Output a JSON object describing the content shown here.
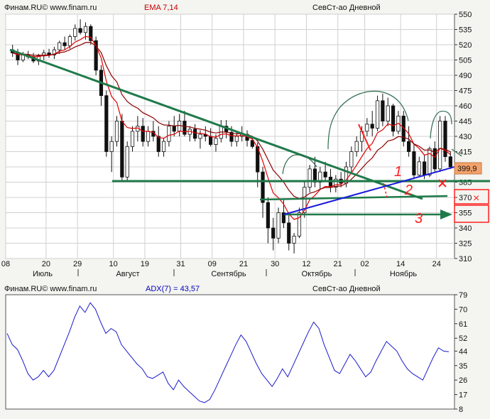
{
  "panel_price": {
    "source_label": "Финам.RU© www.finam.ru",
    "indicator_label": "EMA 7,14",
    "instrument_label": "СевСт-ао Дневной"
  },
  "panel_adx": {
    "source_label": "Финам.RU© www.finam.ru",
    "indicator_label": "ADX(7) = 43,57",
    "instrument_label": "СевСт-ао Дневной"
  },
  "annotations": {
    "last_price_tag": "399,9",
    "mark_1": "1",
    "mark_2": "2",
    "mark_3": "3",
    "mark_x": "×"
  },
  "colors": {
    "candle_up": "#ffffff",
    "candle_down": "#111111",
    "ema_fast": "#e00000",
    "ema_slow": "#8b0000",
    "trend_green": "#1f7a4a",
    "envelope": "#2e6b4d",
    "support_blue": "#1a1adb",
    "adx_line": "#1a1acc",
    "hand_marks": "#ff2020",
    "price_tag_bg": "#f2a26a",
    "grid": "#d0d0d0",
    "plot_bg": "#ffffff"
  },
  "chart_data": [
    {
      "type": "candlestick",
      "title": "СевСт-ао Дневной",
      "ylim": [
        310,
        550
      ],
      "y_ticks": [
        310,
        325,
        340,
        355,
        370,
        385,
        400,
        415,
        430,
        445,
        460,
        475,
        490,
        505,
        520,
        535,
        550
      ],
      "x_day_ticks": [
        "08",
        "20",
        "29",
        "10",
        "19",
        "31",
        "09",
        "21",
        "30",
        "12",
        "21",
        "02",
        "14",
        "24"
      ],
      "x_month_ticks": [
        "Июль",
        "Август",
        "Сентябрь",
        "Октябрь",
        "Ноябрь"
      ],
      "grid": true,
      "series": [
        {
          "name": "OHLC",
          "ohlc": [
            [
              515,
              520,
              508,
              512
            ],
            [
              512,
              516,
              500,
              505
            ],
            [
              505,
              513,
              503,
              510
            ],
            [
              510,
              514,
              506,
              508
            ],
            [
              508,
              512,
              502,
              504
            ],
            [
              504,
              511,
              500,
              509
            ],
            [
              509,
              515,
              505,
              512
            ],
            [
              512,
              516,
              507,
              510
            ],
            [
              510,
              518,
              506,
              515
            ],
            [
              515,
              524,
              511,
              522
            ],
            [
              522,
              528,
              515,
              519
            ],
            [
              519,
              530,
              516,
              528
            ],
            [
              528,
              540,
              524,
              536
            ],
            [
              536,
              545,
              530,
              532
            ],
            [
              532,
              542,
              525,
              538
            ],
            [
              538,
              540,
              520,
              524
            ],
            [
              524,
              528,
              490,
              495
            ],
            [
              495,
              500,
              460,
              470
            ],
            [
              470,
              475,
              410,
              415
            ],
            [
              415,
              430,
              395,
              425
            ],
            [
              425,
              450,
              420,
              445
            ],
            [
              445,
              452,
              385,
              390
            ],
            [
              390,
              425,
              385,
              420
            ],
            [
              420,
              440,
              415,
              435
            ],
            [
              435,
              450,
              425,
              440
            ],
            [
              440,
              448,
              420,
              425
            ],
            [
              425,
              440,
              420,
              435
            ],
            [
              435,
              445,
              425,
              430
            ],
            [
              430,
              440,
              410,
              415
            ],
            [
              415,
              428,
              410,
              425
            ],
            [
              425,
              445,
              420,
              440
            ],
            [
              440,
              450,
              430,
              435
            ],
            [
              435,
              452,
              430,
              445
            ],
            [
              445,
              455,
              430,
              432
            ],
            [
              432,
              440,
              425,
              437
            ],
            [
              437,
              442,
              425,
              428
            ],
            [
              428,
              436,
              418,
              432
            ],
            [
              432,
              440,
              425,
              430
            ],
            [
              430,
              438,
              420,
              422
            ],
            [
              422,
              432,
              415,
              428
            ],
            [
              428,
              446,
              424,
              440
            ],
            [
              440,
              446,
              428,
              434
            ],
            [
              434,
              440,
              420,
              425
            ],
            [
              425,
              435,
              420,
              430
            ],
            [
              430,
              440,
              425,
              432
            ],
            [
              432,
              436,
              420,
              426
            ],
            [
              426,
              430,
              418,
              420
            ],
            [
              420,
              424,
              380,
              395
            ],
            [
              395,
              400,
              350,
              365
            ],
            [
              365,
              370,
              325,
              340
            ],
            [
              340,
              350,
              318,
              330
            ],
            [
              330,
              360,
              325,
              355
            ],
            [
              355,
              368,
              340,
              345
            ],
            [
              345,
              355,
              318,
              325
            ],
            [
              325,
              335,
              315,
              332
            ],
            [
              332,
              360,
              330,
              355
            ],
            [
              355,
              385,
              350,
              380
            ],
            [
              380,
              402,
              375,
              398
            ],
            [
              398,
              410,
              380,
              385
            ],
            [
              385,
              400,
              378,
              395
            ],
            [
              395,
              405,
              385,
              390
            ],
            [
              390,
              398,
              375,
              380
            ],
            [
              380,
              392,
              375,
              388
            ],
            [
              388,
              395,
              380,
              384
            ],
            [
              384,
              405,
              380,
              400
            ],
            [
              400,
              420,
              395,
              415
            ],
            [
              415,
              430,
              410,
              425
            ],
            [
              425,
              440,
              415,
              435
            ],
            [
              435,
              448,
              430,
              442
            ],
            [
              442,
              455,
              430,
              438
            ],
            [
              438,
              470,
              435,
              465
            ],
            [
              465,
              472,
              440,
              445
            ],
            [
              445,
              468,
              440,
              460
            ],
            [
              460,
              462,
              430,
              435
            ],
            [
              435,
              455,
              432,
              450
            ],
            [
              450,
              455,
              420,
              425
            ],
            [
              425,
              440,
              410,
              415
            ],
            [
              415,
              422,
              388,
              392
            ],
            [
              392,
              410,
              390,
              405
            ],
            [
              405,
              412,
              388,
              392
            ],
            [
              392,
              420,
              390,
              418
            ],
            [
              418,
              425,
              395,
              398
            ],
            [
              398,
              450,
              395,
              445
            ],
            [
              445,
              450,
              405,
              410
            ],
            [
              410,
              415,
              398,
              400
            ]
          ]
        },
        {
          "name": "EMA 7",
          "color": "#e00000"
        },
        {
          "name": "EMA 14",
          "color": "#8b0000"
        }
      ]
    },
    {
      "type": "line",
      "title": "ADX(7) = 43,57",
      "ylim": [
        8,
        79
      ],
      "y_ticks": [
        8,
        17,
        26,
        35,
        44,
        52,
        61,
        70,
        79
      ],
      "grid": false,
      "series": [
        {
          "name": "ADX(7)",
          "values": [
            55,
            48,
            45,
            38,
            30,
            26,
            28,
            32,
            28,
            32,
            40,
            48,
            56,
            65,
            72,
            68,
            74,
            70,
            62,
            55,
            58,
            56,
            48,
            44,
            40,
            36,
            33,
            28,
            27,
            29,
            31,
            24,
            20,
            26,
            22,
            19,
            16,
            13,
            12,
            14,
            20,
            27,
            34,
            41,
            48,
            54,
            50,
            43,
            36,
            30,
            26,
            22,
            27,
            33,
            28,
            35,
            42,
            49,
            56,
            62,
            58,
            48,
            40,
            32,
            30,
            36,
            42,
            38,
            33,
            28,
            31,
            38,
            44,
            50,
            47,
            44,
            38,
            33,
            30,
            28,
            26,
            33,
            40,
            46,
            44,
            43.57
          ]
        }
      ]
    }
  ]
}
